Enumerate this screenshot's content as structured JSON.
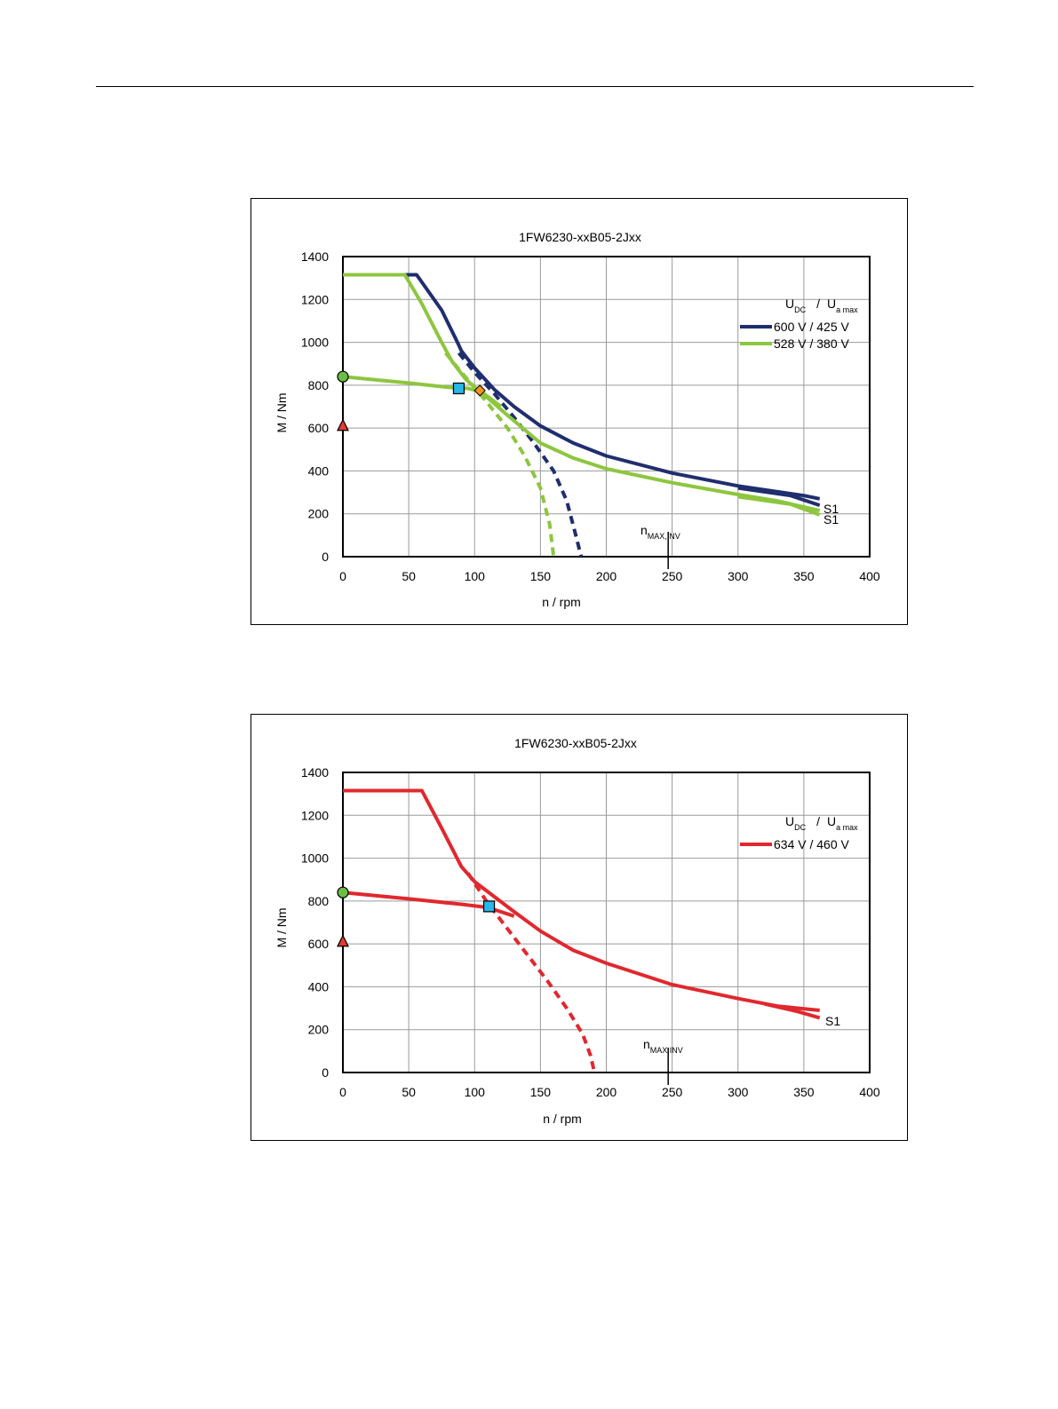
{
  "chart_data": [
    {
      "type": "line",
      "title": "1FW6230-xxB05-2Jxx",
      "xlabel": "n / rpm",
      "ylabel": "M / Nm",
      "xlim": [
        0,
        400
      ],
      "ylim": [
        0,
        1400
      ],
      "x_ticks": [
        0,
        50,
        100,
        150,
        200,
        250,
        300,
        350,
        400
      ],
      "y_ticks": [
        0,
        200,
        400,
        600,
        800,
        1000,
        1200,
        1400
      ],
      "grid": true,
      "legend_title": {
        "main1": "U",
        "sub1": "DC",
        "sep": "/",
        "main2": "U",
        "sub2": "a max"
      },
      "legend_position": "top-right",
      "annotation": {
        "main": "n",
        "sub": "MAX,INV",
        "x": 247
      },
      "series": [
        {
          "name": "600 V / 425 V",
          "color": "#1f2e6e",
          "legend": true,
          "segments": [
            {
              "style": "solid",
              "points": [
                [
                  0,
                  1315
                ],
                [
                  56,
                  1315
                ],
                [
                  75,
                  1150
                ],
                [
                  87,
                  1000
                ],
                [
                  90,
                  960
                ],
                [
                  100,
                  880
                ],
                [
                  115,
                  780
                ],
                [
                  130,
                  700
                ],
                [
                  150,
                  610
                ],
                [
                  175,
                  530
                ],
                [
                  200,
                  470
                ],
                [
                  250,
                  390
                ],
                [
                  300,
                  330
                ],
                [
                  350,
                  285
                ],
                [
                  362,
                  270
                ]
              ],
              "end_label": "S1"
            },
            {
              "style": "solid",
              "points": [
                [
                  300,
                  320
                ],
                [
                  340,
                  285
                ],
                [
                  362,
                  240
                ]
              ]
            },
            {
              "style": "dashed",
              "points": [
                [
                  88,
                  950
                ],
                [
                  100,
                  860
                ],
                [
                  115,
                  760
                ],
                [
                  130,
                  650
                ],
                [
                  145,
                  530
                ],
                [
                  160,
                  400
                ],
                [
                  170,
                  260
                ],
                [
                  176,
                  120
                ],
                [
                  181,
                  0
                ]
              ]
            }
          ]
        },
        {
          "name": "528 V / 380 V",
          "color": "#8dc63f",
          "legend": true,
          "segments": [
            {
              "style": "solid",
              "points": [
                [
                  0,
                  1315
                ],
                [
                  47,
                  1315
                ],
                [
                  60,
                  1180
                ],
                [
                  75,
                  1000
                ],
                [
                  83,
                  910
                ],
                [
                  93,
                  830
                ],
                [
                  100,
                  790
                ],
                [
                  110,
                  740
                ],
                [
                  125,
                  660
                ],
                [
                  150,
                  530
                ],
                [
                  175,
                  460
                ],
                [
                  200,
                  410
                ],
                [
                  250,
                  345
                ],
                [
                  300,
                  290
                ],
                [
                  330,
                  260
                ],
                [
                  362,
                  215
                ]
              ],
              "end_label": "S1"
            },
            {
              "style": "solid",
              "points": [
                [
                  0,
                  840
                ],
                [
                  50,
                  810
                ],
                [
                  80,
                  790
                ],
                [
                  95,
                  785
                ],
                [
                  105,
                  770
                ],
                [
                  120,
                  700
                ]
              ]
            },
            {
              "style": "solid",
              "points": [
                [
                  300,
                  280
                ],
                [
                  340,
                  245
                ],
                [
                  362,
                  195
                ]
              ]
            },
            {
              "style": "dashed",
              "points": [
                [
                  78,
                  950
                ],
                [
                  90,
                  860
                ],
                [
                  100,
                  790
                ],
                [
                  112,
                  700
                ],
                [
                  125,
                  600
                ],
                [
                  138,
                  470
                ],
                [
                  150,
                  320
                ],
                [
                  157,
                  150
                ],
                [
                  160,
                  0
                ]
              ]
            }
          ]
        }
      ],
      "markers": [
        {
          "shape": "circle",
          "x": 0,
          "y": 840,
          "color": "#6cbd45"
        },
        {
          "shape": "triangle",
          "x": 0,
          "y": 610,
          "color": "#e03c31"
        },
        {
          "shape": "square",
          "x": 88,
          "y": 785,
          "color": "#29b6e8"
        },
        {
          "shape": "diamond",
          "x": 104,
          "y": 775,
          "color": "#f7941d"
        }
      ]
    },
    {
      "type": "line",
      "title": "1FW6230-xxB05-2Jxx",
      "xlabel": "n / rpm",
      "ylabel": "M / Nm",
      "xlim": [
        0,
        400
      ],
      "ylim": [
        0,
        1400
      ],
      "x_ticks": [
        0,
        50,
        100,
        150,
        200,
        250,
        300,
        350,
        400
      ],
      "y_ticks": [
        0,
        200,
        400,
        600,
        800,
        1000,
        1200,
        1400
      ],
      "grid": true,
      "legend_title": {
        "main1": "U",
        "sub1": "DC",
        "sep": "/",
        "main2": "U",
        "sub2": "a max"
      },
      "legend_position": "top-right",
      "annotation": {
        "main": "n",
        "sub": "MAX,INV",
        "x": 247
      },
      "series": [
        {
          "name": "634 V / 460 V",
          "color": "#e0282e",
          "legend": true,
          "segments": [
            {
              "style": "solid",
              "points": [
                [
                  0,
                  1315
                ],
                [
                  60,
                  1315
                ],
                [
                  75,
                  1140
                ],
                [
                  90,
                  960
                ],
                [
                  100,
                  890
                ],
                [
                  115,
                  820
                ],
                [
                  130,
                  750
                ],
                [
                  150,
                  660
                ],
                [
                  175,
                  570
                ],
                [
                  200,
                  510
                ],
                [
                  250,
                  410
                ],
                [
                  300,
                  345
                ],
                [
                  330,
                  310
                ],
                [
                  362,
                  290
                ]
              ],
              "end_label": "S1"
            },
            {
              "style": "solid",
              "points": [
                [
                  0,
                  840
                ],
                [
                  50,
                  810
                ],
                [
                  90,
                  785
                ],
                [
                  110,
                  770
                ],
                [
                  130,
                  730
                ]
              ]
            },
            {
              "style": "solid",
              "points": [
                [
                  320,
                  320
                ],
                [
                  345,
                  285
                ],
                [
                  362,
                  255
                ]
              ]
            },
            {
              "style": "dashed",
              "points": [
                [
                  95,
                  930
                ],
                [
                  110,
                  790
                ],
                [
                  125,
                  670
                ],
                [
                  140,
                  550
                ],
                [
                  155,
                  430
                ],
                [
                  170,
                  300
                ],
                [
                  182,
                  180
                ],
                [
                  188,
                  80
                ],
                [
                  191,
                  0
                ]
              ]
            }
          ]
        }
      ],
      "markers": [
        {
          "shape": "circle",
          "x": 0,
          "y": 840,
          "color": "#6cbd45"
        },
        {
          "shape": "triangle",
          "x": 0,
          "y": 610,
          "color": "#e03c31"
        },
        {
          "shape": "square",
          "x": 111,
          "y": 775,
          "color": "#29b6e8"
        }
      ]
    }
  ]
}
